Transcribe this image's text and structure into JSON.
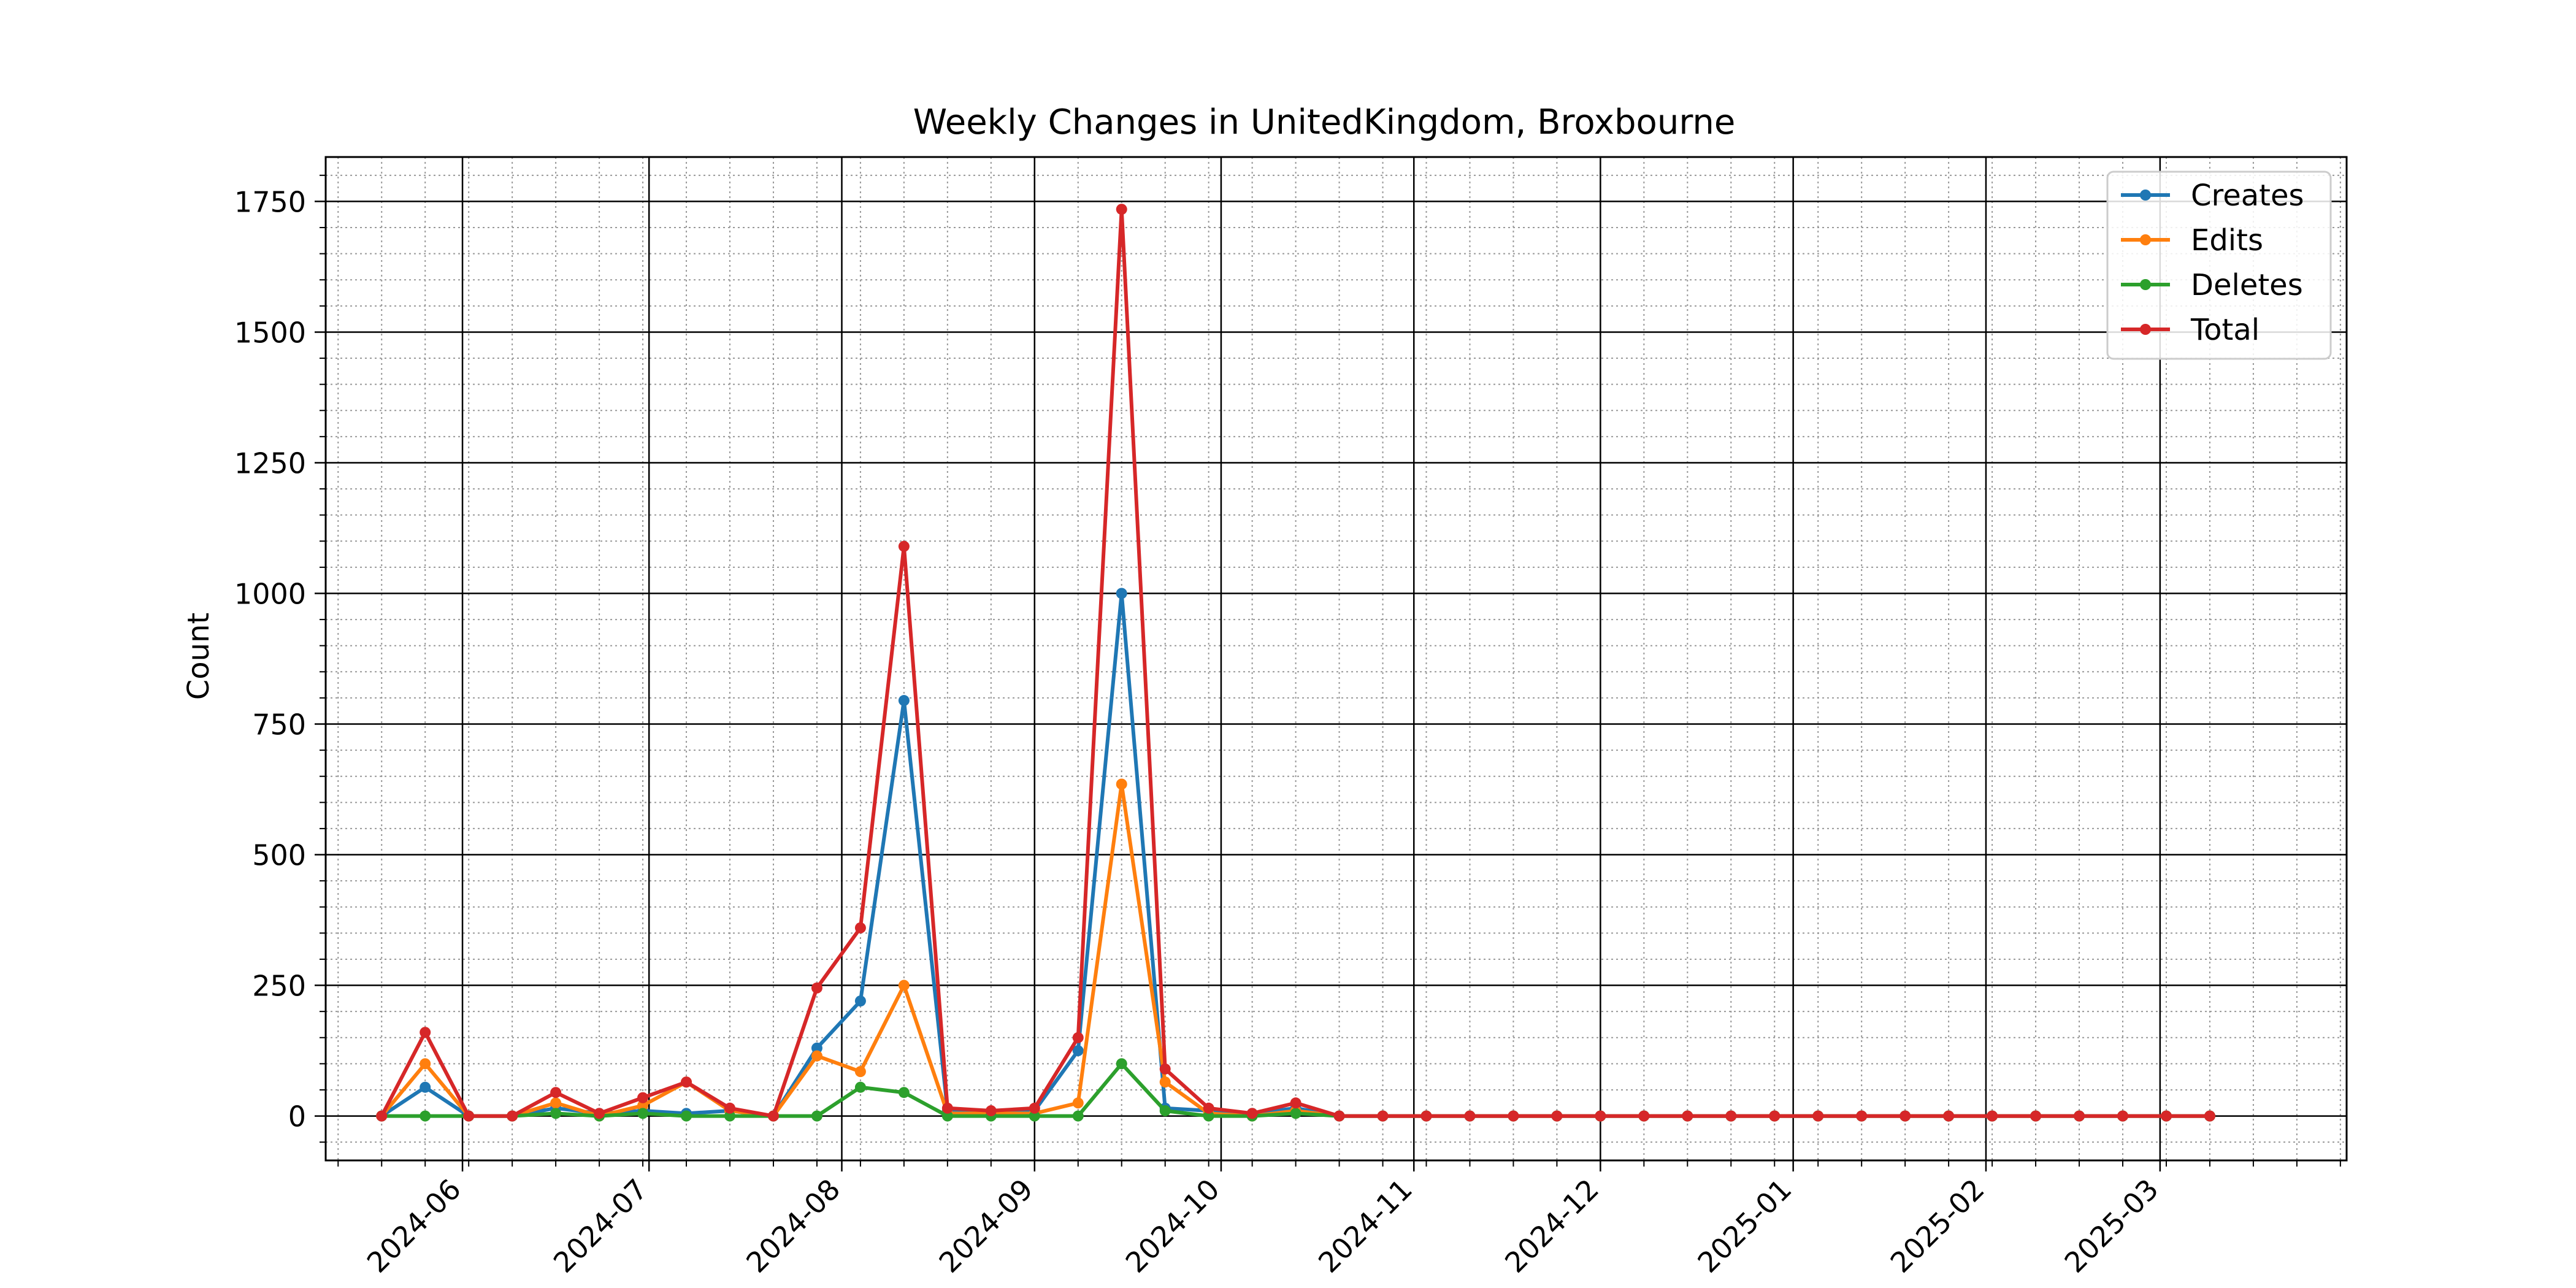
{
  "chart_data": {
    "type": "line",
    "title": "Weekly Changes in UnitedKingdom, Broxbourne",
    "xlabel": "",
    "ylabel": "Count",
    "xlim": [
      "2024-05-10",
      "2025-03-31"
    ],
    "ylim": [
      -85,
      1835
    ],
    "x_ticks": [
      "2024-06",
      "2024-07",
      "2024-08",
      "2024-09",
      "2024-10",
      "2024-11",
      "2024-12",
      "2025-01",
      "2025-02",
      "2025-03"
    ],
    "y_ticks": [
      0,
      250,
      500,
      750,
      1000,
      1250,
      1500,
      1750
    ],
    "grid": true,
    "legend_position": "top-right",
    "x": [
      "2024-05-19",
      "2024-05-26",
      "2024-06-02",
      "2024-06-09",
      "2024-06-16",
      "2024-06-23",
      "2024-06-30",
      "2024-07-07",
      "2024-07-14",
      "2024-07-21",
      "2024-07-28",
      "2024-08-04",
      "2024-08-11",
      "2024-08-18",
      "2024-08-25",
      "2024-09-01",
      "2024-09-08",
      "2024-09-15",
      "2024-09-22",
      "2024-09-29",
      "2024-10-06",
      "2024-10-13",
      "2024-10-20",
      "2024-10-27",
      "2024-11-03",
      "2024-11-10",
      "2024-11-17",
      "2024-11-24",
      "2024-12-01",
      "2024-12-08",
      "2024-12-15",
      "2024-12-22",
      "2024-12-29",
      "2025-01-05",
      "2025-01-12",
      "2025-01-19",
      "2025-01-26",
      "2025-02-02",
      "2025-02-09",
      "2025-02-16",
      "2025-02-23",
      "2025-03-02",
      "2025-03-09"
    ],
    "series": [
      {
        "name": "Creates",
        "color": "#1f77b4",
        "values": [
          0,
          55,
          0,
          0,
          15,
          5,
          10,
          5,
          10,
          0,
          130,
          220,
          795,
          10,
          5,
          10,
          125,
          1000,
          15,
          10,
          5,
          15,
          0,
          0,
          0,
          0,
          0,
          0,
          0,
          0,
          0,
          0,
          0,
          0,
          0,
          0,
          0,
          0,
          0,
          0,
          0,
          0,
          0
        ]
      },
      {
        "name": "Edits",
        "color": "#ff7f0e",
        "values": [
          0,
          100,
          0,
          0,
          25,
          0,
          20,
          65,
          10,
          0,
          115,
          85,
          250,
          5,
          5,
          5,
          25,
          635,
          65,
          5,
          0,
          10,
          0,
          0,
          0,
          0,
          0,
          0,
          0,
          0,
          0,
          0,
          0,
          0,
          0,
          0,
          0,
          0,
          0,
          0,
          0,
          0,
          0
        ]
      },
      {
        "name": "Deletes",
        "color": "#2ca02c",
        "values": [
          0,
          0,
          0,
          0,
          5,
          0,
          5,
          0,
          0,
          0,
          0,
          55,
          45,
          0,
          0,
          0,
          0,
          100,
          10,
          0,
          0,
          5,
          0,
          0,
          0,
          0,
          0,
          0,
          0,
          0,
          0,
          0,
          0,
          0,
          0,
          0,
          0,
          0,
          0,
          0,
          0,
          0,
          0
        ]
      },
      {
        "name": "Total",
        "color": "#d62728",
        "values": [
          0,
          160,
          0,
          0,
          45,
          5,
          35,
          65,
          15,
          0,
          245,
          360,
          1090,
          15,
          10,
          15,
          150,
          1735,
          90,
          15,
          5,
          25,
          0,
          0,
          0,
          0,
          0,
          0,
          0,
          0,
          0,
          0,
          0,
          0,
          0,
          0,
          0,
          0,
          0,
          0,
          0,
          0,
          0
        ]
      }
    ]
  }
}
